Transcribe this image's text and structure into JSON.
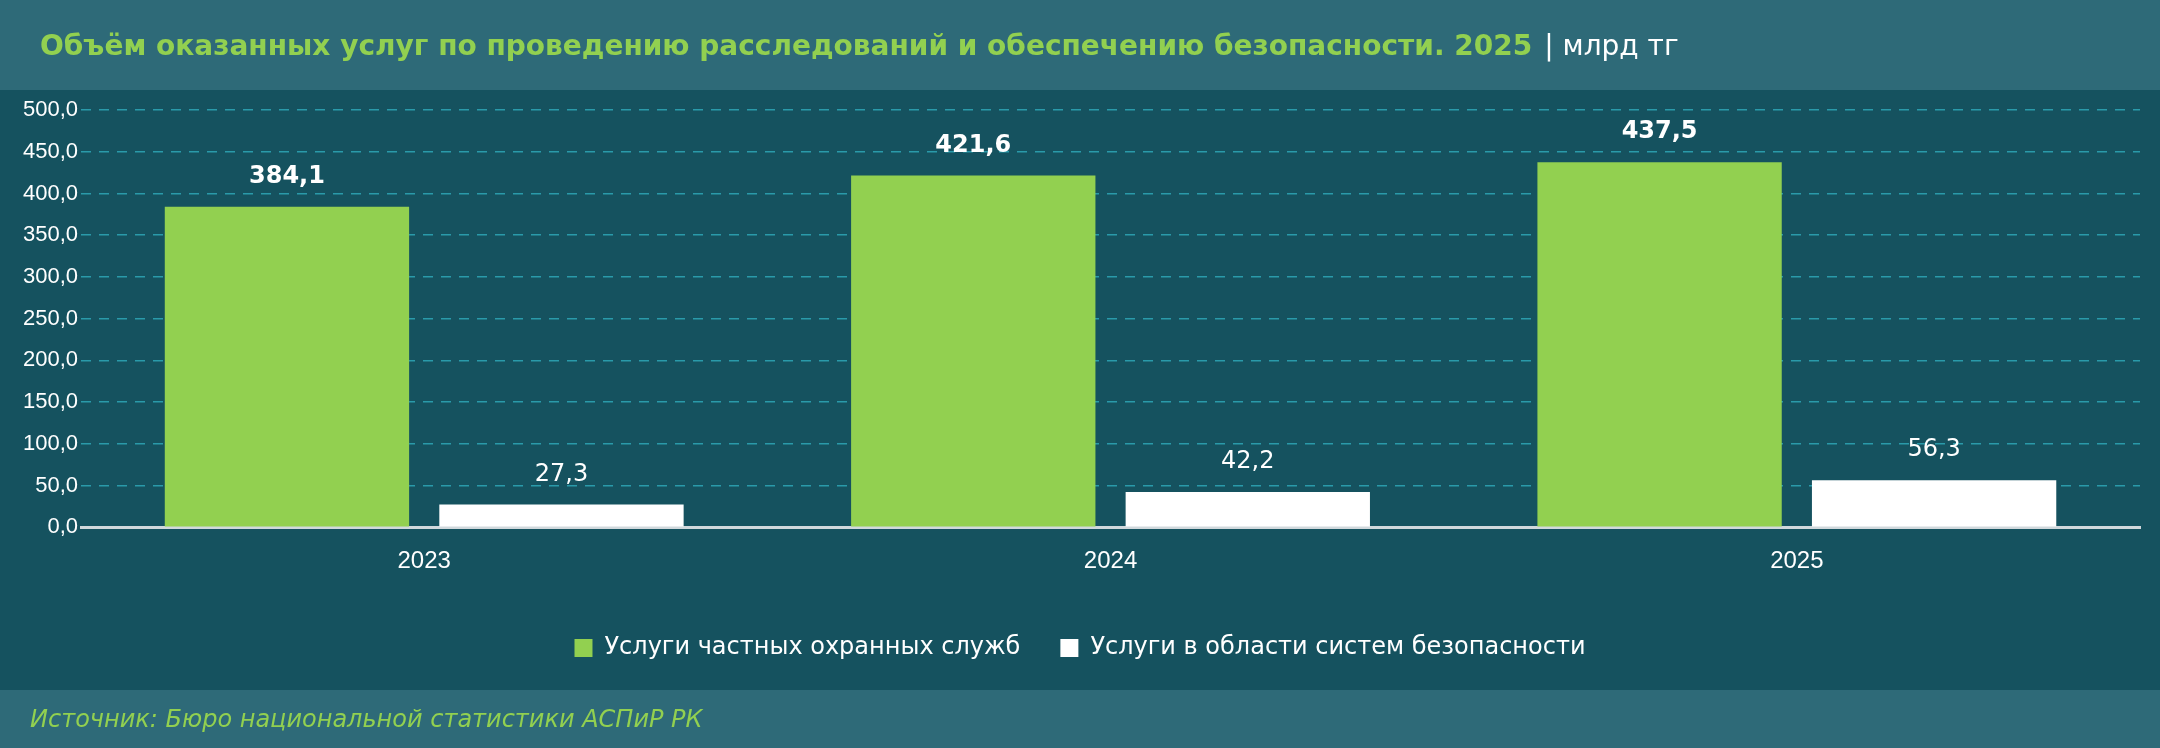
{
  "chart_data": {
    "type": "bar",
    "title": "Объём оказанных услуг по проведению расследований и обеспечению безопасности. 2025",
    "subtitle": "| млрд тг",
    "categories": [
      "2023",
      "2024",
      "2025"
    ],
    "series": [
      {
        "name": "Услуги частных охранных служб",
        "color": "#92d050",
        "values": [
          384.1,
          421.6,
          437.5
        ],
        "value_labels": [
          "384,1",
          "421,6",
          "437,5"
        ]
      },
      {
        "name": "Услуги в области систем безопасности",
        "color": "#ffffff",
        "values": [
          27.3,
          42.2,
          56.3
        ],
        "value_labels": [
          "27,3",
          "42,2",
          "56,3"
        ]
      }
    ],
    "ylim": [
      0,
      500
    ],
    "yticks": [
      {
        "value": 0,
        "label": "0,0"
      },
      {
        "value": 50,
        "label": "50,0"
      },
      {
        "value": 100,
        "label": "100,0"
      },
      {
        "value": 150,
        "label": "150,0"
      },
      {
        "value": 200,
        "label": "200,0"
      },
      {
        "value": 250,
        "label": "250,0"
      },
      {
        "value": 300,
        "label": "300,0"
      },
      {
        "value": 350,
        "label": "350,0"
      },
      {
        "value": 400,
        "label": "400,0"
      },
      {
        "value": 450,
        "label": "450,0"
      },
      {
        "value": 500,
        "label": "500,0"
      }
    ],
    "grid": "y",
    "legend": "bottom",
    "annotations": [
      "Источник: Бюро национальной статистики АСПиР РК"
    ]
  }
}
